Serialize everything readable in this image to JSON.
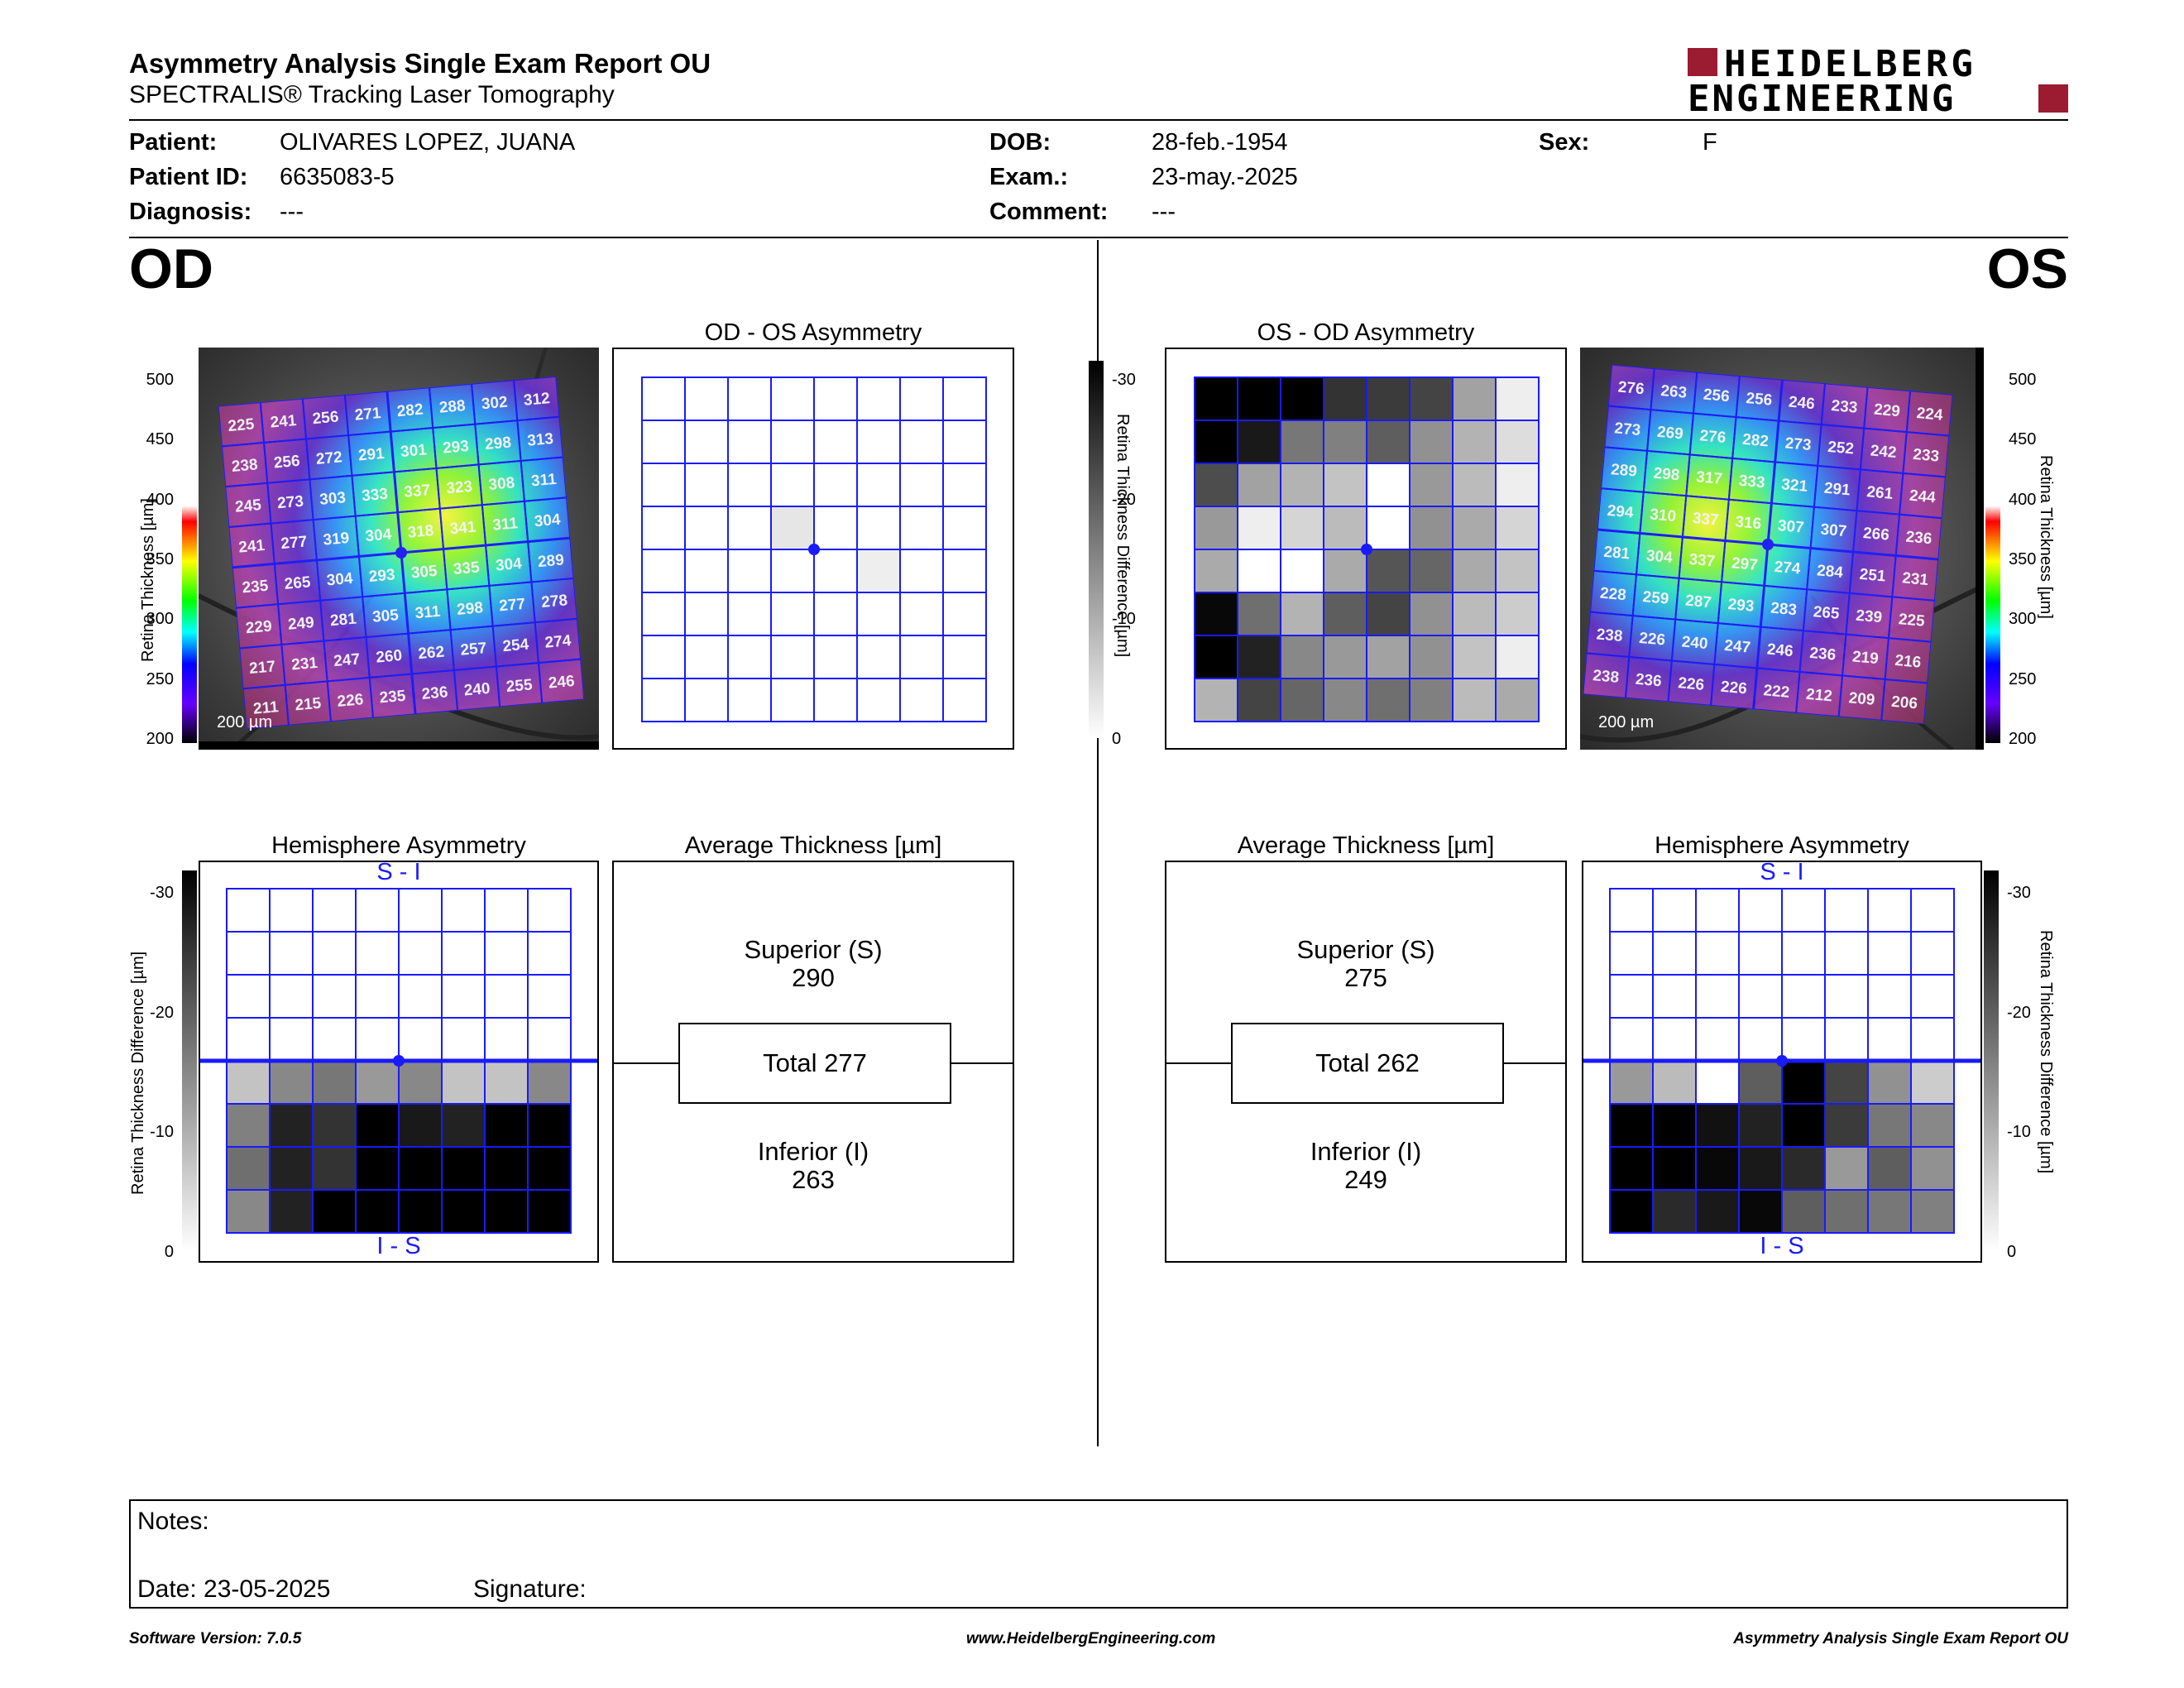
{
  "header": {
    "title": "Asymmetry Analysis Single Exam Report OU",
    "subtitle": "SPECTRALIS® Tracking Laser Tomography",
    "logo_line1": "HEIDELBERG",
    "logo_line2": "ENGINEERING",
    "brand_color": "#9b1b30"
  },
  "patient": {
    "patient_label": "Patient:",
    "patient_value": "OLIVARES LOPEZ, JUANA",
    "id_label": "Patient ID:",
    "id_value": "6635083-5",
    "diag_label": "Diagnosis:",
    "diag_value": "---",
    "dob_label": "DOB:",
    "dob_value": "28-feb.-1954",
    "exam_label": "Exam.:",
    "exam_value": "23-may.-2025",
    "comment_label": "Comment:",
    "comment_value": "---",
    "sex_label": "Sex:",
    "sex_value": "F"
  },
  "od": {
    "eye_label": "OD",
    "asym_title": "OD - OS Asymmetry",
    "hemi_title": "Hemisphere Asymmetry",
    "avg_title": "Average Thickness [µm]",
    "superior_label": "Superior (S)",
    "superior_value": "290",
    "total_label": "Total 277",
    "inferior_label": "Inferior (I)",
    "inferior_value": "263",
    "scale_bar": "200 µm",
    "hemi_top_label": "S - I",
    "hemi_bottom_label": "I - S",
    "thickness_grid": [
      [
        225,
        241,
        256,
        271,
        282,
        288,
        302,
        312
      ],
      [
        238,
        256,
        272,
        291,
        301,
        293,
        298,
        313
      ],
      [
        245,
        273,
        303,
        333,
        337,
        323,
        308,
        311
      ],
      [
        241,
        277,
        319,
        304,
        318,
        341,
        311,
        304
      ],
      [
        235,
        265,
        304,
        293,
        305,
        335,
        304,
        289
      ],
      [
        229,
        249,
        281,
        305,
        311,
        298,
        277,
        278
      ],
      [
        217,
        231,
        247,
        260,
        262,
        257,
        254,
        274
      ],
      [
        211,
        215,
        226,
        235,
        236,
        240,
        255,
        246
      ]
    ],
    "asym_grid": [
      [
        0,
        0,
        0,
        0,
        0,
        0,
        0,
        0
      ],
      [
        0,
        0,
        0,
        0,
        0,
        0,
        0,
        0
      ],
      [
        0,
        0,
        0,
        0,
        0,
        0,
        0,
        0
      ],
      [
        0,
        0,
        0,
        3,
        0,
        0,
        0,
        0
      ],
      [
        0,
        0,
        0,
        0,
        0,
        2,
        0,
        0
      ],
      [
        0,
        0,
        0,
        0,
        0,
        0,
        0,
        0
      ],
      [
        0,
        0,
        0,
        0,
        0,
        0,
        0,
        0
      ],
      [
        0,
        0,
        0,
        0,
        0,
        0,
        0,
        0
      ]
    ],
    "hemi_grid": [
      [
        0,
        0,
        0,
        0,
        0,
        0,
        0,
        0
      ],
      [
        0,
        0,
        0,
        0,
        0,
        0,
        0,
        0
      ],
      [
        0,
        0,
        0,
        0,
        0,
        0,
        0,
        0
      ],
      [
        0,
        0,
        0,
        0,
        0,
        0,
        0,
        0
      ],
      [
        7,
        14,
        16,
        12,
        14,
        7,
        7,
        14
      ],
      [
        15,
        26,
        24,
        30,
        27,
        26,
        30,
        30
      ],
      [
        17,
        26,
        24,
        30,
        30,
        30,
        30,
        30
      ],
      [
        14,
        26,
        30,
        30,
        30,
        30,
        30,
        30
      ]
    ]
  },
  "os": {
    "eye_label": "OS",
    "asym_title": "OS - OD Asymmetry",
    "hemi_title": "Hemisphere Asymmetry",
    "avg_title": "Average Thickness [µm]",
    "superior_label": "Superior (S)",
    "superior_value": "275",
    "total_label": "Total 262",
    "inferior_label": "Inferior (I)",
    "inferior_value": "249",
    "scale_bar": "200 µm",
    "hemi_top_label": "S - I",
    "hemi_bottom_label": "I - S",
    "thickness_grid": [
      [
        276,
        263,
        256,
        256,
        246,
        233,
        229,
        224
      ],
      [
        273,
        269,
        276,
        282,
        273,
        252,
        242,
        233
      ],
      [
        289,
        298,
        317,
        333,
        321,
        291,
        261,
        244
      ],
      [
        294,
        310,
        337,
        316,
        307,
        307,
        266,
        236
      ],
      [
        281,
        304,
        337,
        297,
        274,
        284,
        251,
        231
      ],
      [
        228,
        259,
        287,
        293,
        283,
        265,
        239,
        225
      ],
      [
        238,
        226,
        240,
        247,
        246,
        236,
        219,
        216
      ],
      [
        238,
        236,
        226,
        226,
        222,
        212,
        209,
        206
      ]
    ],
    "asym_grid": [
      [
        30,
        30,
        30,
        24,
        23,
        22,
        11,
        2
      ],
      [
        30,
        27,
        16,
        15,
        19,
        13,
        9,
        4
      ],
      [
        21,
        11,
        9,
        7,
        0,
        12,
        8,
        2
      ],
      [
        12,
        2,
        5,
        8,
        0,
        13,
        10,
        5
      ],
      [
        10,
        0,
        0,
        10,
        20,
        18,
        10,
        7
      ],
      [
        29,
        17,
        9,
        19,
        22,
        13,
        8,
        6
      ],
      [
        30,
        26,
        14,
        12,
        11,
        13,
        7,
        2
      ],
      [
        9,
        22,
        18,
        14,
        17,
        15,
        8,
        10
      ]
    ],
    "hemi_grid": [
      [
        0,
        0,
        0,
        0,
        0,
        0,
        0,
        0
      ],
      [
        0,
        0,
        0,
        0,
        0,
        0,
        0,
        0
      ],
      [
        0,
        0,
        0,
        0,
        0,
        0,
        0,
        0
      ],
      [
        0,
        0,
        0,
        0,
        0,
        0,
        0,
        0
      ],
      [
        12,
        8,
        0,
        19,
        30,
        22,
        13,
        6
      ],
      [
        30,
        30,
        28,
        26,
        30,
        23,
        16,
        14
      ],
      [
        30,
        30,
        29,
        27,
        25,
        12,
        19,
        13
      ],
      [
        30,
        25,
        27,
        29,
        19,
        17,
        16,
        15
      ]
    ]
  },
  "scales": {
    "thickness_label": "Retina Thickness [µm]",
    "thickness_ticks": [
      "500",
      "450",
      "400",
      "350",
      "300",
      "250",
      "200"
    ],
    "diff_label": "Retina Thickness Difference [µm]",
    "diff_ticks": [
      "-30",
      "-20",
      "-10",
      "0"
    ]
  },
  "notes": {
    "notes_label": "Notes:",
    "date_label": "Date: 23-05-2025",
    "signature_label": "Signature:"
  },
  "footer": {
    "software": "Software Version: 7.0.5",
    "url": "www.HeidelbergEngineering.com",
    "report": "Asymmetry Analysis Single Exam Report OU"
  }
}
